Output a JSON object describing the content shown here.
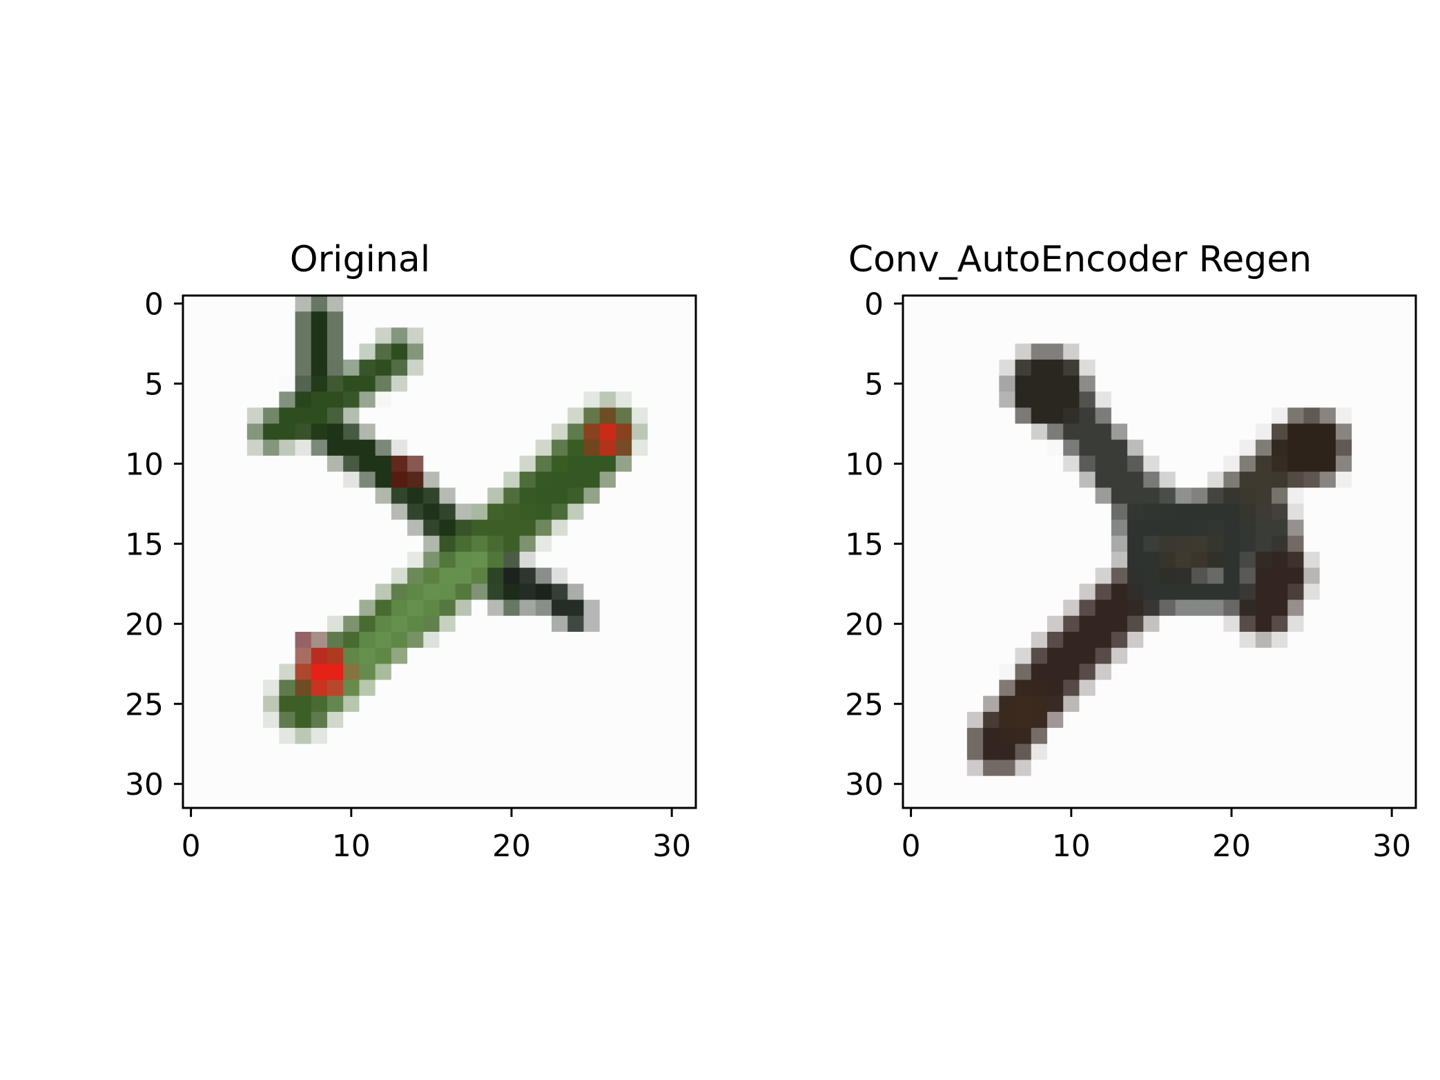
{
  "chart_data": [
    {
      "type": "heatmap",
      "title": "Original",
      "xlabel": "",
      "ylabel": "",
      "xlim": [
        -0.5,
        31.5
      ],
      "ylim": [
        31.5,
        -0.5
      ],
      "xticks": [
        0,
        10,
        20,
        30
      ],
      "yticks": [
        0,
        5,
        10,
        15,
        20,
        25,
        30
      ],
      "xtick_labels": [
        "0",
        "10",
        "20",
        "30"
      ],
      "ytick_labels": [
        "0",
        "5",
        "10",
        "15",
        "20",
        "25",
        "30"
      ],
      "grid": false,
      "image_size": [
        32,
        32
      ],
      "shapes": [
        {
          "kind": "stroke",
          "points": [
            [
              8,
              1
            ],
            [
              8,
              5
            ],
            [
              7,
              7
            ],
            [
              13,
              11
            ],
            [
              18,
              16
            ],
            [
              20,
              18
            ]
          ],
          "width": 2.4,
          "color": "#1e3318"
        },
        {
          "kind": "stroke",
          "points": [
            [
              5,
              8
            ],
            [
              9,
              6
            ],
            [
              12,
              4
            ],
            [
              13,
              3
            ]
          ],
          "width": 2.2,
          "color": "#2f4e20"
        },
        {
          "kind": "stroke",
          "points": [
            [
              7,
              25
            ],
            [
              10,
              22
            ],
            [
              14,
              19
            ],
            [
              18,
              15.5
            ],
            [
              22,
              12
            ],
            [
              26,
              8
            ]
          ],
          "width": 3.6,
          "color": "#3d5f27"
        },
        {
          "kind": "stroke",
          "points": [
            [
              9,
              24
            ],
            [
              12,
              21
            ],
            [
              15,
              18
            ],
            [
              18,
              16
            ]
          ],
          "width": 2.2,
          "color": "#66904e"
        },
        {
          "kind": "stroke",
          "points": [
            [
              20,
              17
            ],
            [
              23,
              18.5
            ],
            [
              24,
              19.5
            ]
          ],
          "width": 1.8,
          "color": "#1b231c"
        },
        {
          "kind": "stroke",
          "points": [
            [
              22,
              12
            ],
            [
              24,
              11
            ],
            [
              26,
              9
            ]
          ],
          "width": 2.6,
          "color": "#345823"
        },
        {
          "kind": "blob",
          "center": [
            8.3,
            23
          ],
          "radius": 1.4,
          "color": "#e52118"
        },
        {
          "kind": "blob",
          "center": [
            26,
            8.3
          ],
          "radius": 1.1,
          "color": "#cc2a18"
        },
        {
          "kind": "blob",
          "center": [
            13.4,
            10.5
          ],
          "radius": 0.9,
          "color": "#6a1410"
        },
        {
          "kind": "blob",
          "center": [
            7.3,
            21.3
          ],
          "radius": 0.6,
          "color": "#5c0f12"
        }
      ]
    },
    {
      "type": "heatmap",
      "title": "Conv_AutoEncoder Regen",
      "xlabel": "",
      "ylabel": "",
      "xlim": [
        -0.5,
        31.5
      ],
      "ylim": [
        31.5,
        -0.5
      ],
      "xticks": [
        0,
        10,
        20,
        30
      ],
      "yticks": [
        0,
        5,
        10,
        15,
        20,
        25,
        30
      ],
      "xtick_labels": [
        "0",
        "10",
        "20",
        "30"
      ],
      "ytick_labels": [
        "0",
        "5",
        "10",
        "15",
        "20",
        "25",
        "30"
      ],
      "grid": false,
      "image_size": [
        32,
        32
      ],
      "shapes": [
        {
          "kind": "stroke",
          "points": [
            [
              5.5,
              27.5
            ],
            [
              9,
              23
            ],
            [
              13,
              19
            ],
            [
              17,
              15.5
            ],
            [
              22,
              14
            ],
            [
              23,
              17
            ],
            [
              22,
              19
            ]
          ],
          "width": 3.6,
          "color": "#332620"
        },
        {
          "kind": "stroke",
          "points": [
            [
              8.5,
              5
            ],
            [
              11,
              8
            ],
            [
              14,
              12
            ],
            [
              17,
              14
            ],
            [
              22,
              14
            ]
          ],
          "width": 3.2,
          "color": "#3a3c38"
        },
        {
          "kind": "stroke",
          "points": [
            [
              17,
              15
            ],
            [
              21,
              12
            ],
            [
              24,
              9
            ]
          ],
          "width": 3.2,
          "color": "#3f3a30"
        },
        {
          "kind": "stroke",
          "points": [
            [
              14,
              14
            ],
            [
              20,
              13
            ],
            [
              20,
              18
            ],
            [
              15,
              18
            ],
            [
              14,
              14
            ]
          ],
          "width": 2.2,
          "color": "#2e3330"
        },
        {
          "kind": "blob",
          "center": [
            8.5,
            5.3
          ],
          "radius": 2.4,
          "color": "#2a2620"
        },
        {
          "kind": "blob",
          "center": [
            25,
            9
          ],
          "radius": 2.3,
          "color": "#2d231a"
        },
        {
          "kind": "blob",
          "center": [
            7,
            25.5
          ],
          "radius": 1.4,
          "color": "#3d2a1e"
        }
      ]
    }
  ]
}
